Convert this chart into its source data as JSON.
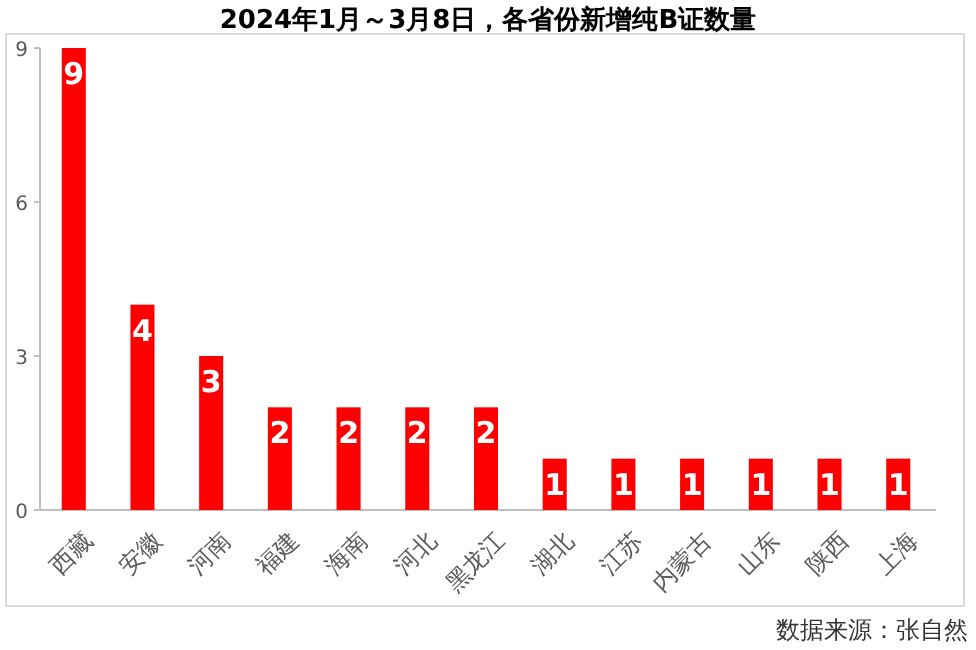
{
  "chart_data": {
    "type": "bar",
    "title": "2024年1月～3月8日，各省份新增纯B证数量",
    "categories": [
      "西藏",
      "安徽",
      "河南",
      "福建",
      "海南",
      "河北",
      "黑龙江",
      "湖北",
      "江苏",
      "内蒙古",
      "山东",
      "陕西",
      "上海"
    ],
    "values": [
      9,
      4,
      3,
      2,
      2,
      2,
      2,
      1,
      1,
      1,
      1,
      1,
      1
    ],
    "color": "#ff0000",
    "ylim": [
      0,
      9
    ],
    "yticks": [
      0,
      3,
      6,
      9
    ],
    "grid": false,
    "data_labels": true,
    "annotations": [
      "数据来源：张自然"
    ]
  }
}
